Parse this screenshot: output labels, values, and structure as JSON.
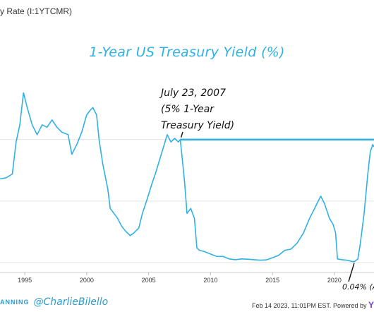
{
  "header": {
    "title": "y Rate (I:1YTCMR)"
  },
  "chart_data": {
    "type": "line",
    "title": "1-Year US Treasury Yield (%)",
    "xlabel": "",
    "ylabel": "",
    "x_ticks": [
      1995,
      2000,
      2005,
      2010,
      2015,
      2020
    ],
    "xlim": [
      1993.0,
      2023.2
    ],
    "ylim": [
      -0.4,
      7.0
    ],
    "y_gridlines": [
      0,
      2.5,
      5
    ],
    "line_color": "#2fb1e5",
    "series": [
      {
        "values": [
          [
            1993.0,
            3.4
          ],
          [
            1993.5,
            3.45
          ],
          [
            1994.0,
            3.6
          ],
          [
            1994.3,
            4.9
          ],
          [
            1994.6,
            5.6
          ],
          [
            1994.9,
            6.9
          ],
          [
            1995.2,
            6.3
          ],
          [
            1995.6,
            5.6
          ],
          [
            1996.0,
            5.2
          ],
          [
            1996.4,
            5.6
          ],
          [
            1996.8,
            5.5
          ],
          [
            1997.2,
            5.8
          ],
          [
            1997.6,
            5.5
          ],
          [
            1998.0,
            5.3
          ],
          [
            1998.5,
            5.2
          ],
          [
            1998.8,
            4.4
          ],
          [
            1999.2,
            4.8
          ],
          [
            1999.6,
            5.3
          ],
          [
            2000.0,
            6.0
          ],
          [
            2000.3,
            6.2
          ],
          [
            2000.5,
            6.3
          ],
          [
            2000.8,
            6.0
          ],
          [
            2001.0,
            5.0
          ],
          [
            2001.3,
            4.0
          ],
          [
            2001.7,
            3.0
          ],
          [
            2001.9,
            2.2
          ],
          [
            2002.2,
            2.0
          ],
          [
            2002.5,
            1.8
          ],
          [
            2002.8,
            1.5
          ],
          [
            2003.1,
            1.3
          ],
          [
            2003.5,
            1.1
          ],
          [
            2003.8,
            1.2
          ],
          [
            2004.2,
            1.4
          ],
          [
            2004.5,
            2.0
          ],
          [
            2004.9,
            2.6
          ],
          [
            2005.2,
            3.1
          ],
          [
            2005.6,
            3.7
          ],
          [
            2005.9,
            4.2
          ],
          [
            2006.2,
            4.7
          ],
          [
            2006.5,
            5.2
          ],
          [
            2006.8,
            4.9
          ],
          [
            2007.1,
            5.05
          ],
          [
            2007.4,
            4.9
          ],
          [
            2007.56,
            5.0
          ],
          [
            2007.7,
            4.3
          ],
          [
            2007.9,
            3.3
          ],
          [
            2008.1,
            2.0
          ],
          [
            2008.4,
            2.2
          ],
          [
            2008.7,
            1.8
          ],
          [
            2008.9,
            0.6
          ],
          [
            2009.1,
            0.5
          ],
          [
            2009.5,
            0.45
          ],
          [
            2010.0,
            0.35
          ],
          [
            2010.5,
            0.25
          ],
          [
            2011.0,
            0.25
          ],
          [
            2011.5,
            0.15
          ],
          [
            2012.0,
            0.12
          ],
          [
            2012.5,
            0.15
          ],
          [
            2013.0,
            0.14
          ],
          [
            2013.5,
            0.12
          ],
          [
            2014.0,
            0.1
          ],
          [
            2014.5,
            0.11
          ],
          [
            2015.0,
            0.2
          ],
          [
            2015.5,
            0.3
          ],
          [
            2016.0,
            0.5
          ],
          [
            2016.5,
            0.55
          ],
          [
            2017.0,
            0.8
          ],
          [
            2017.5,
            1.2
          ],
          [
            2018.0,
            1.8
          ],
          [
            2018.5,
            2.3
          ],
          [
            2018.9,
            2.7
          ],
          [
            2019.2,
            2.4
          ],
          [
            2019.6,
            1.8
          ],
          [
            2019.9,
            1.55
          ],
          [
            2020.1,
            1.2
          ],
          [
            2020.25,
            0.15
          ],
          [
            2020.6,
            0.12
          ],
          [
            2021.0,
            0.1
          ],
          [
            2021.4,
            0.05
          ],
          [
            2021.6,
            0.04
          ],
          [
            2021.9,
            0.15
          ],
          [
            2022.1,
            0.8
          ],
          [
            2022.4,
            2.0
          ],
          [
            2022.7,
            3.6
          ],
          [
            2022.9,
            4.5
          ],
          [
            2023.1,
            4.8
          ],
          [
            2023.2,
            4.7
          ]
        ]
      }
    ],
    "reference_line": {
      "from_x": 2007.56,
      "to_x": 2023.2,
      "y": 5.0
    },
    "annotations": [
      {
        "lines": [
          "July 23, 2007",
          "(5% 1-Year",
          "Treasury Yield)"
        ]
      },
      {
        "text": "0.04% (A"
      }
    ]
  },
  "footer": {
    "brand": "ANNING",
    "handle": "@CharlieBilello",
    "stamp": "Feb 14 2023, 11:01PM EST.",
    "powered_label": "Powered by",
    "powered_logo": "Y"
  }
}
